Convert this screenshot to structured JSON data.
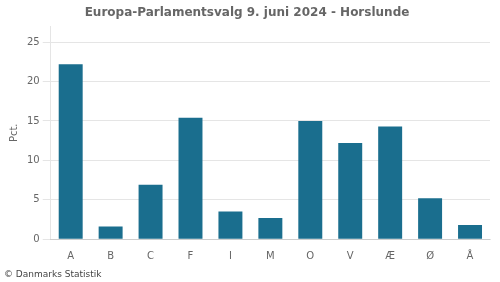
{
  "chart_data": {
    "type": "bar",
    "title": "Europa-Parlamentsvalg 9. juni 2024 - Horslunde",
    "categories": [
      "A",
      "B",
      "C",
      "F",
      "I",
      "M",
      "O",
      "V",
      "Æ",
      "Ø",
      "Å"
    ],
    "values": [
      22.2,
      1.6,
      6.9,
      15.4,
      3.5,
      2.7,
      15.0,
      12.2,
      14.3,
      5.2,
      1.8
    ],
    "color": "#1a6e8e",
    "ylabel": "Pct.",
    "annotations": [
      "© Danmarks Statistik"
    ],
    "ylim": [
      0,
      27
    ],
    "yticks": [
      0,
      5,
      10,
      15,
      20,
      25
    ],
    "grid": true
  }
}
